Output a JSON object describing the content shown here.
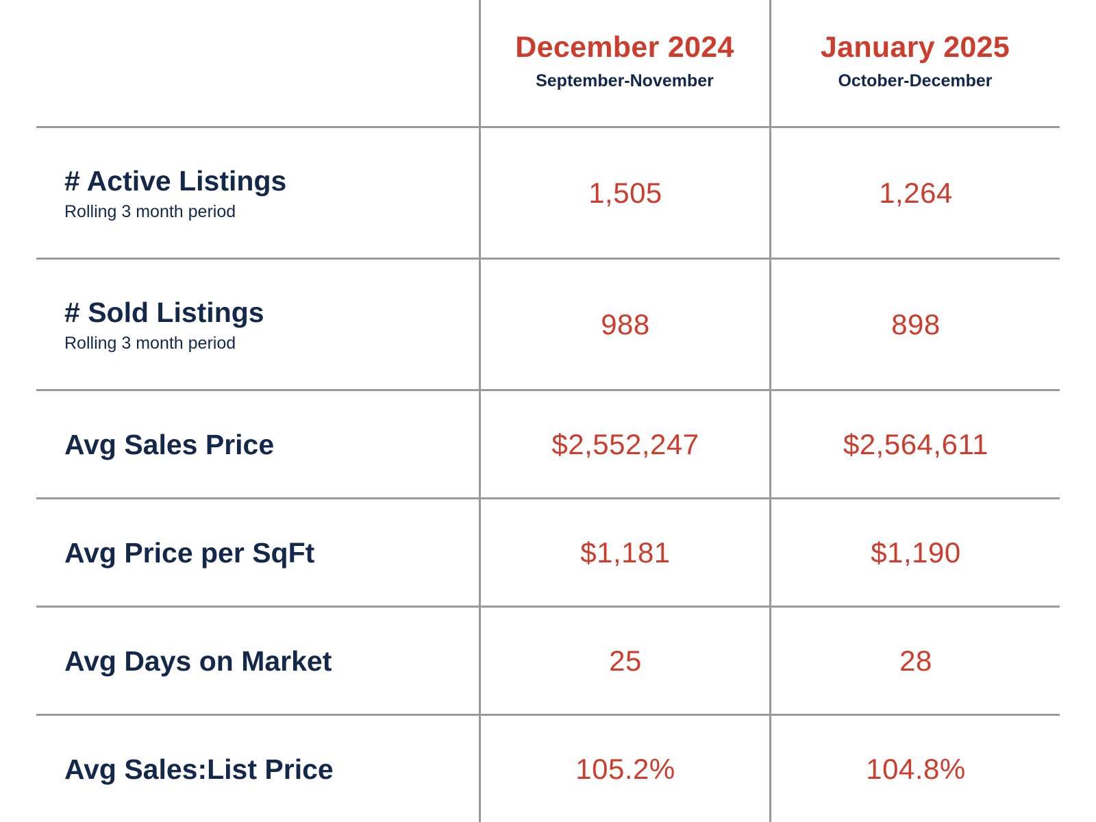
{
  "columns": [
    {
      "title": "December 2024",
      "period": "September-November"
    },
    {
      "title": "January 2025",
      "period": "October-December"
    }
  ],
  "rows": [
    {
      "label": "# Active Listings",
      "sublabel": "Rolling 3 month period",
      "values": [
        "1,505",
        "1,264"
      ]
    },
    {
      "label": "# Sold Listings",
      "sublabel": "Rolling 3 month period",
      "values": [
        "988",
        "898"
      ]
    },
    {
      "label": "Avg Sales Price",
      "sublabel": "",
      "values": [
        "$2,552,247",
        "$2,564,611"
      ]
    },
    {
      "label": "Avg Price per SqFt",
      "sublabel": "",
      "values": [
        "$1,181",
        "$1,190"
      ]
    },
    {
      "label": "Avg Days on Market",
      "sublabel": "",
      "values": [
        "25",
        "28"
      ]
    },
    {
      "label": "Avg Sales:List Price",
      "sublabel": "",
      "values": [
        "105.2%",
        "104.8%"
      ]
    }
  ],
  "colors": {
    "accent": "#cc3d2e",
    "text": "#14284b",
    "grid": "#9a9a9a"
  }
}
